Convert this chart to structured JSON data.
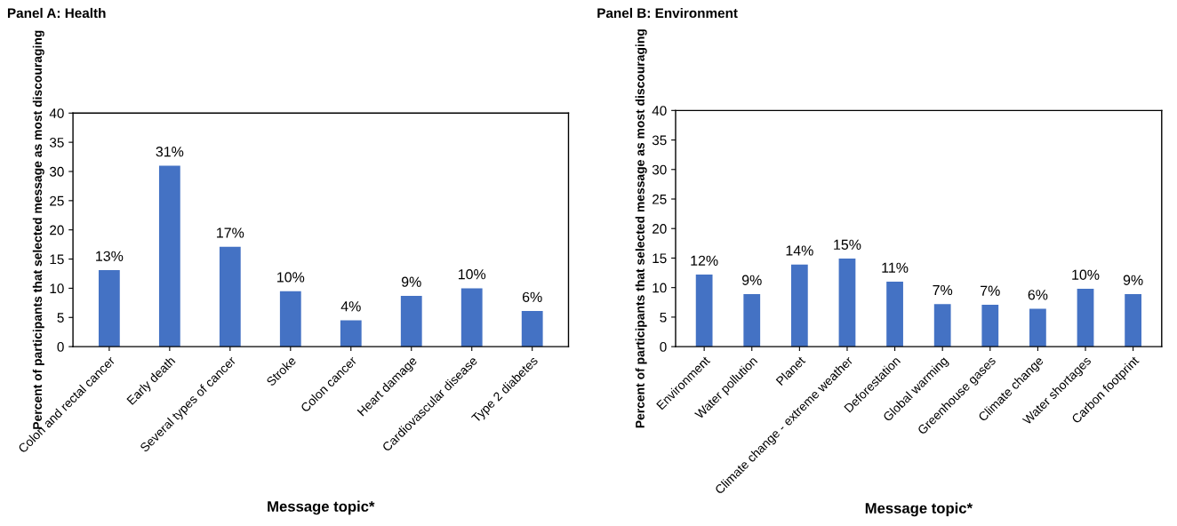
{
  "chart_data": [
    {
      "type": "bar",
      "title": "Panel A: Health",
      "xlabel": "Message topic*",
      "ylabel": "Percent of participants that selected message as most discouraging",
      "categories": [
        "Colon and rectal cancer",
        "Early death",
        "Several types of cancer",
        "Stroke",
        "Colon cancer",
        "Heart damage",
        "Cardiovascular disease",
        "Type 2 diabetes"
      ],
      "values": [
        13.1,
        31,
        17.1,
        9.5,
        4.5,
        8.7,
        10,
        6.1
      ],
      "value_labels": [
        "13%",
        "31%",
        "17%",
        "10%",
        "4%",
        "9%",
        "10%",
        "6%"
      ],
      "color": "#4472c4",
      "ylim": [
        0,
        40
      ],
      "yticks": [
        0,
        5,
        10,
        15,
        20,
        25,
        30,
        35,
        40
      ],
      "grid": false,
      "legend": false
    },
    {
      "type": "bar",
      "title": "Panel B: Environment",
      "xlabel": "Message topic*",
      "ylabel": "Percent of participants that selected message as most discouraging",
      "categories": [
        "Environment",
        "Water pollution",
        "Planet",
        "Climate change - extreme weather",
        "Deforestation",
        "Global warming",
        "Greenhouse gases",
        "Climate change",
        "Water shortages",
        "Carbon footprint"
      ],
      "values": [
        12.2,
        8.9,
        13.9,
        14.9,
        11,
        7.2,
        7.1,
        6.4,
        9.8,
        8.9
      ],
      "value_labels": [
        "12%",
        "9%",
        "14%",
        "15%",
        "11%",
        "7%",
        "7%",
        "6%",
        "10%",
        "9%"
      ],
      "color": "#4472c4",
      "ylim": [
        0,
        40
      ],
      "yticks": [
        0,
        5,
        10,
        15,
        20,
        25,
        30,
        35,
        40
      ],
      "grid": false,
      "legend": false
    }
  ]
}
